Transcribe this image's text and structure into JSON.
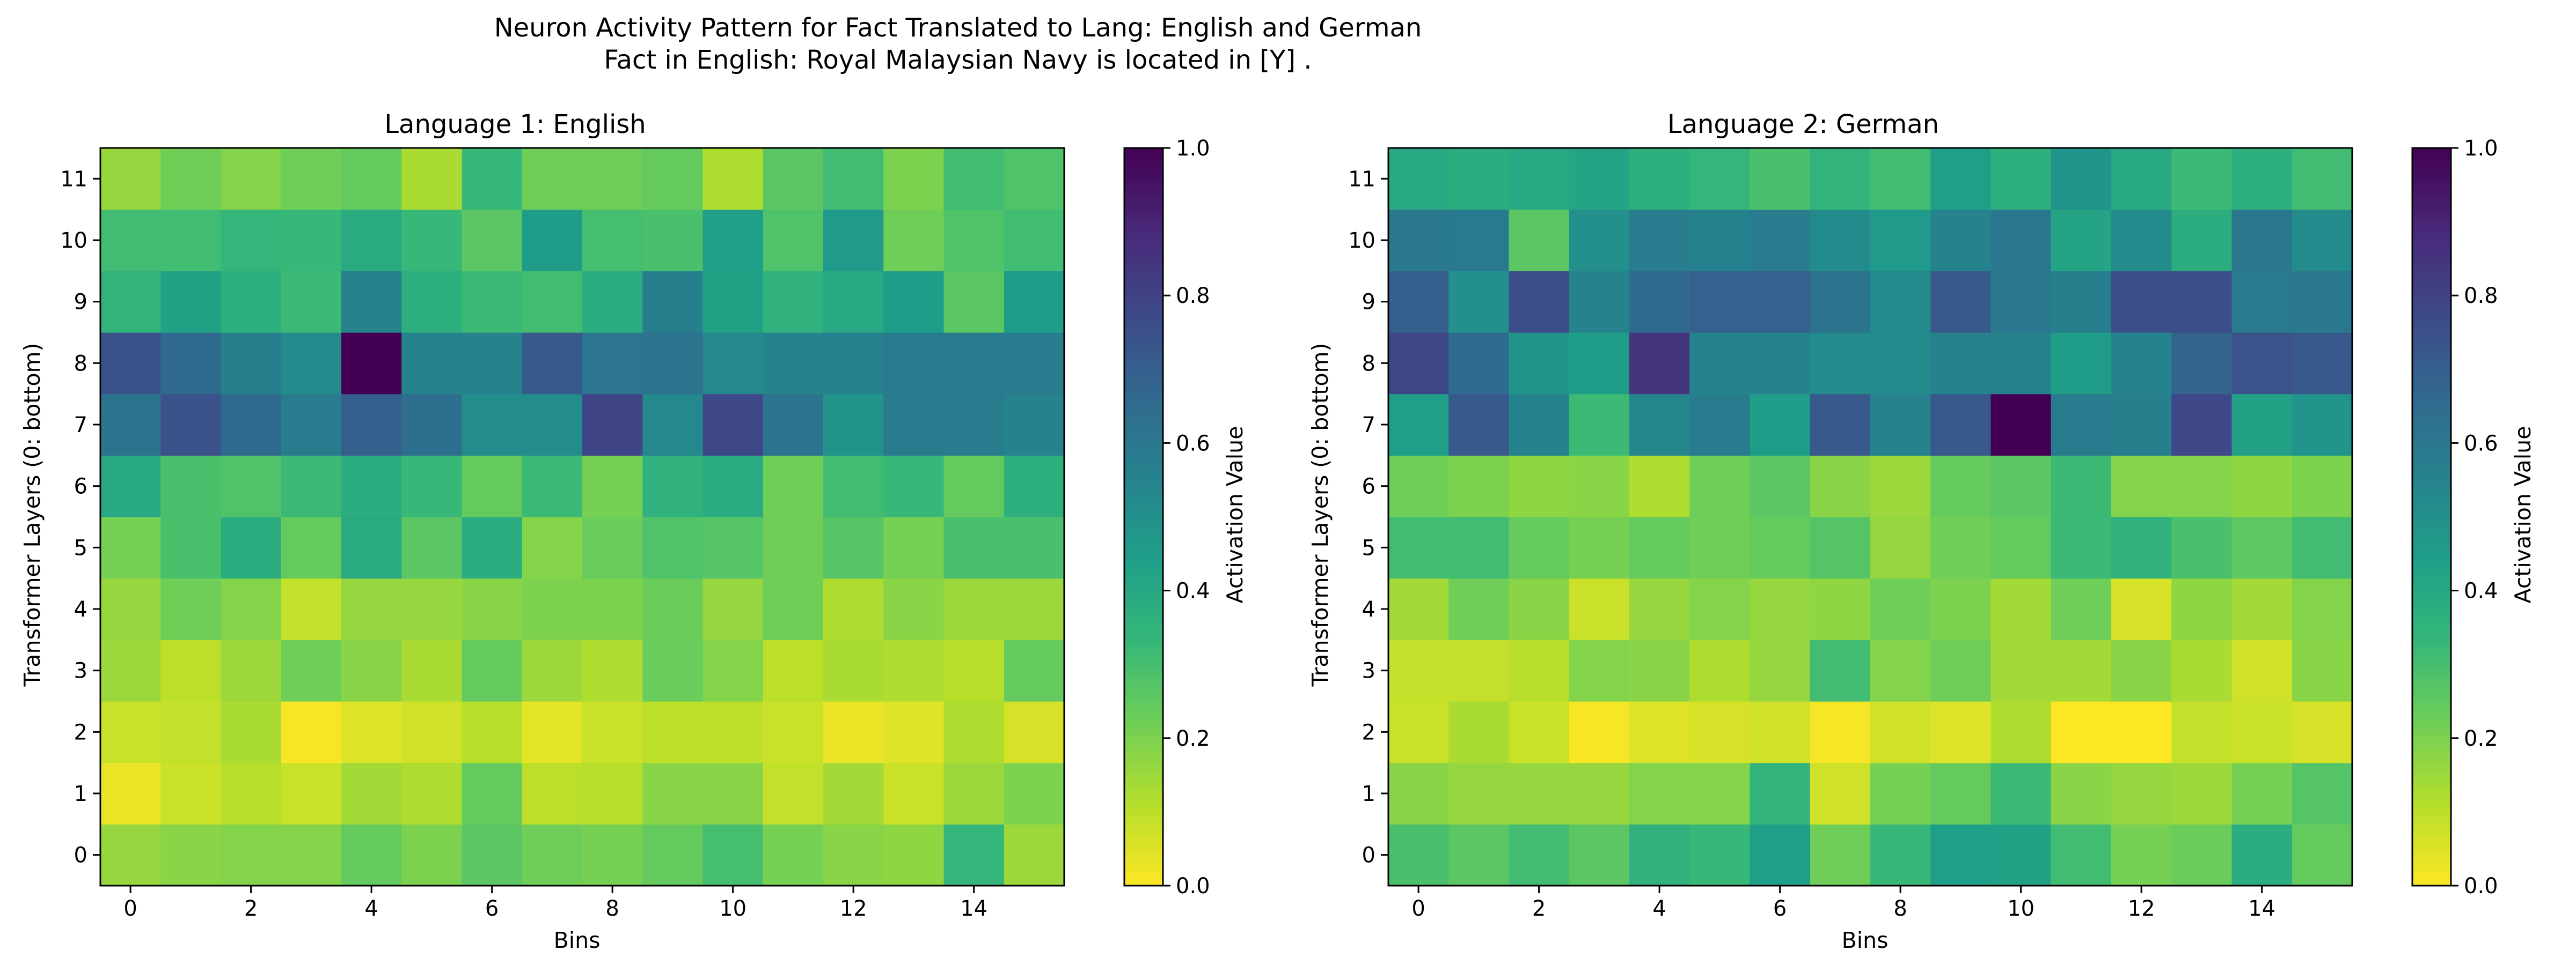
{
  "figure": {
    "suptitle_line1": "Neuron Activity Pattern for Fact Translated to Lang: English and German",
    "suptitle_line2": "Fact in English: Royal Malaysian Navy is located in [Y] ."
  },
  "colormap": {
    "name": "viridis_r",
    "stops": [
      "#fde725",
      "#b5de2b",
      "#6ece58",
      "#35b779",
      "#1f9e89",
      "#26828e",
      "#31688e",
      "#3e4989",
      "#482878",
      "#440154"
    ]
  },
  "chart_data": [
    {
      "type": "heatmap",
      "title": "Language 1: English",
      "xlabel": "Bins",
      "ylabel": "Transformer Layers (0: bottom)",
      "x_ticks": [
        0,
        2,
        4,
        6,
        8,
        10,
        12,
        14
      ],
      "y_ticks": [
        0,
        1,
        2,
        3,
        4,
        5,
        6,
        7,
        8,
        9,
        10,
        11
      ],
      "colorbar_label": "Activation Value",
      "colorbar_ticks": [
        0.0,
        0.2,
        0.4,
        0.6,
        0.8,
        1.0
      ],
      "vmin": 0.0,
      "vmax": 1.0,
      "layers": [
        [
          0.16,
          0.18,
          0.19,
          0.19,
          0.24,
          0.2,
          0.26,
          0.22,
          0.21,
          0.24,
          0.3,
          0.21,
          0.18,
          0.17,
          0.34,
          0.15
        ],
        [
          0.03,
          0.08,
          0.11,
          0.08,
          0.14,
          0.12,
          0.24,
          0.1,
          0.11,
          0.18,
          0.18,
          0.09,
          0.14,
          0.08,
          0.15,
          0.2
        ],
        [
          0.08,
          0.09,
          0.13,
          0.01,
          0.05,
          0.07,
          0.11,
          0.04,
          0.08,
          0.1,
          0.1,
          0.08,
          0.03,
          0.05,
          0.12,
          0.06
        ],
        [
          0.15,
          0.1,
          0.15,
          0.22,
          0.18,
          0.13,
          0.24,
          0.15,
          0.12,
          0.23,
          0.19,
          0.1,
          0.13,
          0.12,
          0.11,
          0.24
        ],
        [
          0.16,
          0.22,
          0.19,
          0.09,
          0.16,
          0.16,
          0.18,
          0.2,
          0.2,
          0.23,
          0.16,
          0.22,
          0.12,
          0.18,
          0.15,
          0.15
        ],
        [
          0.21,
          0.29,
          0.38,
          0.24,
          0.39,
          0.26,
          0.38,
          0.19,
          0.23,
          0.28,
          0.27,
          0.22,
          0.27,
          0.21,
          0.29,
          0.29
        ],
        [
          0.4,
          0.29,
          0.28,
          0.32,
          0.38,
          0.33,
          0.24,
          0.32,
          0.21,
          0.36,
          0.39,
          0.22,
          0.31,
          0.33,
          0.24,
          0.37
        ],
        [
          0.62,
          0.75,
          0.66,
          0.58,
          0.7,
          0.64,
          0.51,
          0.51,
          0.79,
          0.53,
          0.78,
          0.62,
          0.49,
          0.58,
          0.58,
          0.55
        ],
        [
          0.75,
          0.66,
          0.57,
          0.52,
          1.0,
          0.55,
          0.55,
          0.72,
          0.61,
          0.62,
          0.53,
          0.55,
          0.56,
          0.58,
          0.59,
          0.58
        ],
        [
          0.35,
          0.43,
          0.37,
          0.32,
          0.55,
          0.37,
          0.32,
          0.31,
          0.38,
          0.57,
          0.43,
          0.36,
          0.4,
          0.45,
          0.26,
          0.45
        ],
        [
          0.31,
          0.31,
          0.34,
          0.33,
          0.39,
          0.33,
          0.26,
          0.45,
          0.3,
          0.29,
          0.44,
          0.28,
          0.46,
          0.22,
          0.28,
          0.31
        ],
        [
          0.16,
          0.22,
          0.19,
          0.22,
          0.24,
          0.13,
          0.33,
          0.22,
          0.22,
          0.24,
          0.12,
          0.26,
          0.31,
          0.2,
          0.31,
          0.28
        ]
      ]
    },
    {
      "type": "heatmap",
      "title": "Language 2: German",
      "xlabel": "Bins",
      "ylabel": "Transformer Layers (0: bottom)",
      "x_ticks": [
        0,
        2,
        4,
        6,
        8,
        10,
        12,
        14
      ],
      "y_ticks": [
        0,
        1,
        2,
        3,
        4,
        5,
        6,
        7,
        8,
        9,
        10,
        11
      ],
      "colorbar_label": "Activation Value",
      "colorbar_ticks": [
        0.0,
        0.2,
        0.4,
        0.6,
        0.8,
        1.0
      ],
      "vmin": 0.0,
      "vmax": 1.0,
      "layers": [
        [
          0.29,
          0.26,
          0.31,
          0.26,
          0.36,
          0.33,
          0.44,
          0.22,
          0.33,
          0.44,
          0.43,
          0.31,
          0.21,
          0.23,
          0.38,
          0.24
        ],
        [
          0.18,
          0.16,
          0.16,
          0.16,
          0.19,
          0.19,
          0.35,
          0.07,
          0.21,
          0.24,
          0.32,
          0.18,
          0.16,
          0.15,
          0.21,
          0.27
        ],
        [
          0.08,
          0.13,
          0.08,
          0.01,
          0.05,
          0.06,
          0.07,
          0.01,
          0.07,
          0.05,
          0.12,
          0.0,
          0.0,
          0.09,
          0.08,
          0.06
        ],
        [
          0.09,
          0.09,
          0.11,
          0.19,
          0.18,
          0.12,
          0.16,
          0.31,
          0.19,
          0.22,
          0.14,
          0.14,
          0.18,
          0.13,
          0.07,
          0.18
        ],
        [
          0.14,
          0.22,
          0.18,
          0.08,
          0.16,
          0.19,
          0.16,
          0.17,
          0.22,
          0.2,
          0.14,
          0.22,
          0.06,
          0.17,
          0.14,
          0.19
        ],
        [
          0.31,
          0.31,
          0.24,
          0.21,
          0.24,
          0.22,
          0.24,
          0.27,
          0.16,
          0.22,
          0.24,
          0.32,
          0.36,
          0.29,
          0.25,
          0.31
        ],
        [
          0.22,
          0.2,
          0.17,
          0.18,
          0.12,
          0.22,
          0.26,
          0.18,
          0.15,
          0.24,
          0.26,
          0.32,
          0.19,
          0.19,
          0.17,
          0.2
        ],
        [
          0.44,
          0.72,
          0.55,
          0.32,
          0.54,
          0.58,
          0.45,
          0.72,
          0.55,
          0.72,
          1.0,
          0.58,
          0.57,
          0.78,
          0.43,
          0.48
        ],
        [
          0.78,
          0.66,
          0.49,
          0.45,
          0.85,
          0.55,
          0.55,
          0.52,
          0.52,
          0.55,
          0.55,
          0.45,
          0.55,
          0.68,
          0.74,
          0.72
        ],
        [
          0.7,
          0.5,
          0.76,
          0.55,
          0.66,
          0.69,
          0.69,
          0.62,
          0.52,
          0.72,
          0.6,
          0.57,
          0.76,
          0.76,
          0.59,
          0.6
        ],
        [
          0.6,
          0.59,
          0.26,
          0.5,
          0.58,
          0.56,
          0.58,
          0.52,
          0.46,
          0.55,
          0.6,
          0.42,
          0.52,
          0.38,
          0.6,
          0.52
        ],
        [
          0.4,
          0.38,
          0.4,
          0.42,
          0.37,
          0.34,
          0.29,
          0.35,
          0.31,
          0.44,
          0.37,
          0.48,
          0.4,
          0.32,
          0.37,
          0.31
        ]
      ]
    }
  ]
}
